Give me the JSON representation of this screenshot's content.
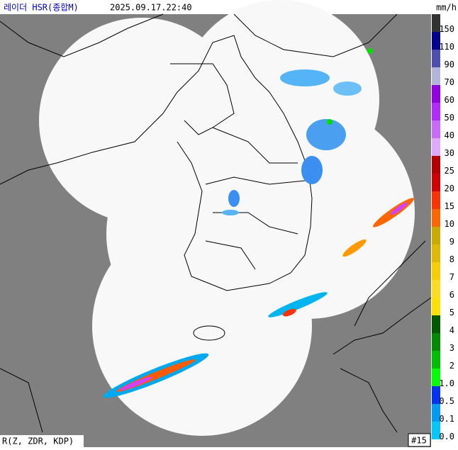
{
  "header": {
    "title": "레이더 HSR(종합M)",
    "timestamp": "2025.09.17.22:40",
    "unit": "mm/h"
  },
  "legend": [
    {
      "label": "150",
      "color": "#333333"
    },
    {
      "label": "110",
      "color": "#000390"
    },
    {
      "label": "90",
      "color": "#4c4eb1"
    },
    {
      "label": "70",
      "color": "#b3b4de"
    },
    {
      "label": "60",
      "color": "#9300e4"
    },
    {
      "label": "50",
      "color": "#b329ff"
    },
    {
      "label": "40",
      "color": "#c969ff"
    },
    {
      "label": "30",
      "color": "#e0a9ff"
    },
    {
      "label": "25",
      "color": "#b40000"
    },
    {
      "label": "20",
      "color": "#d20000"
    },
    {
      "label": "15",
      "color": "#ff3200"
    },
    {
      "label": "10",
      "color": "#ff6600"
    },
    {
      "label": "9",
      "color": "#ccaa00"
    },
    {
      "label": "8",
      "color": "#e0b900"
    },
    {
      "label": "7",
      "color": "#f9cd00"
    },
    {
      "label": "6",
      "color": "#ffdc1f"
    },
    {
      "label": "5",
      "color": "#ffe100"
    },
    {
      "label": "4",
      "color": "#005a00"
    },
    {
      "label": "3",
      "color": "#008c00"
    },
    {
      "label": "2",
      "color": "#00be00"
    },
    {
      "label": "1.0",
      "color": "#00ff00"
    },
    {
      "label": "0.5",
      "color": "#0033f5"
    },
    {
      "label": "0.1",
      "color": "#009bf5"
    },
    {
      "label": "0.0",
      "color": "#00c8ff"
    }
  ],
  "footer": {
    "method": "R(Z, ZDR, KDP)",
    "station": "#15"
  }
}
